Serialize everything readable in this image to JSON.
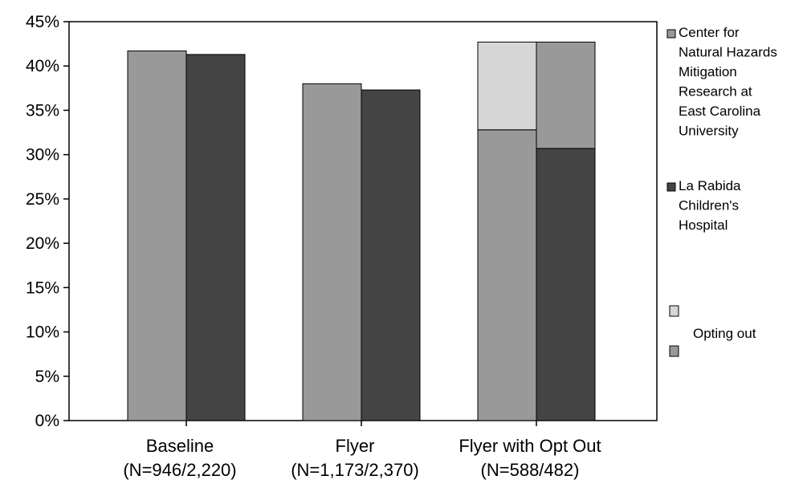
{
  "chart_data": {
    "type": "bar",
    "categories": [
      {
        "name": "Baseline",
        "n": "(N=946/2,220)"
      },
      {
        "name": "Flyer",
        "n": "(N=1,173/2,370)"
      },
      {
        "name": "Flyer with Opt Out",
        "n": "(N=588/482)"
      }
    ],
    "series": [
      {
        "name": "Center for Natural Hazards Mitigation Research at East Carolina University",
        "values": [
          41.7,
          38.0,
          32.8
        ],
        "color": "#999999"
      },
      {
        "name": "La Rabida Children's Hospital",
        "values": [
          41.3,
          37.3,
          30.7
        ],
        "color": "#444444"
      }
    ],
    "opt_out": {
      "label": "Opting out",
      "values": [
        0,
        0,
        9.9,
        12.0
      ],
      "colors": [
        "#d6d6d6",
        "#999999"
      ]
    },
    "ylim": [
      0,
      45
    ],
    "yticks": [
      "0%",
      "5%",
      "10%",
      "15%",
      "20%",
      "25%",
      "30%",
      "35%",
      "40%",
      "45%"
    ],
    "legend": {
      "position": "right",
      "series_lines": [
        [
          "Center for",
          "Natural Hazards",
          "Mitigation",
          "Research at",
          "East Carolina",
          "University"
        ],
        [
          "La Rabida",
          "Children's",
          "Hospital"
        ]
      ]
    },
    "grid": false
  }
}
